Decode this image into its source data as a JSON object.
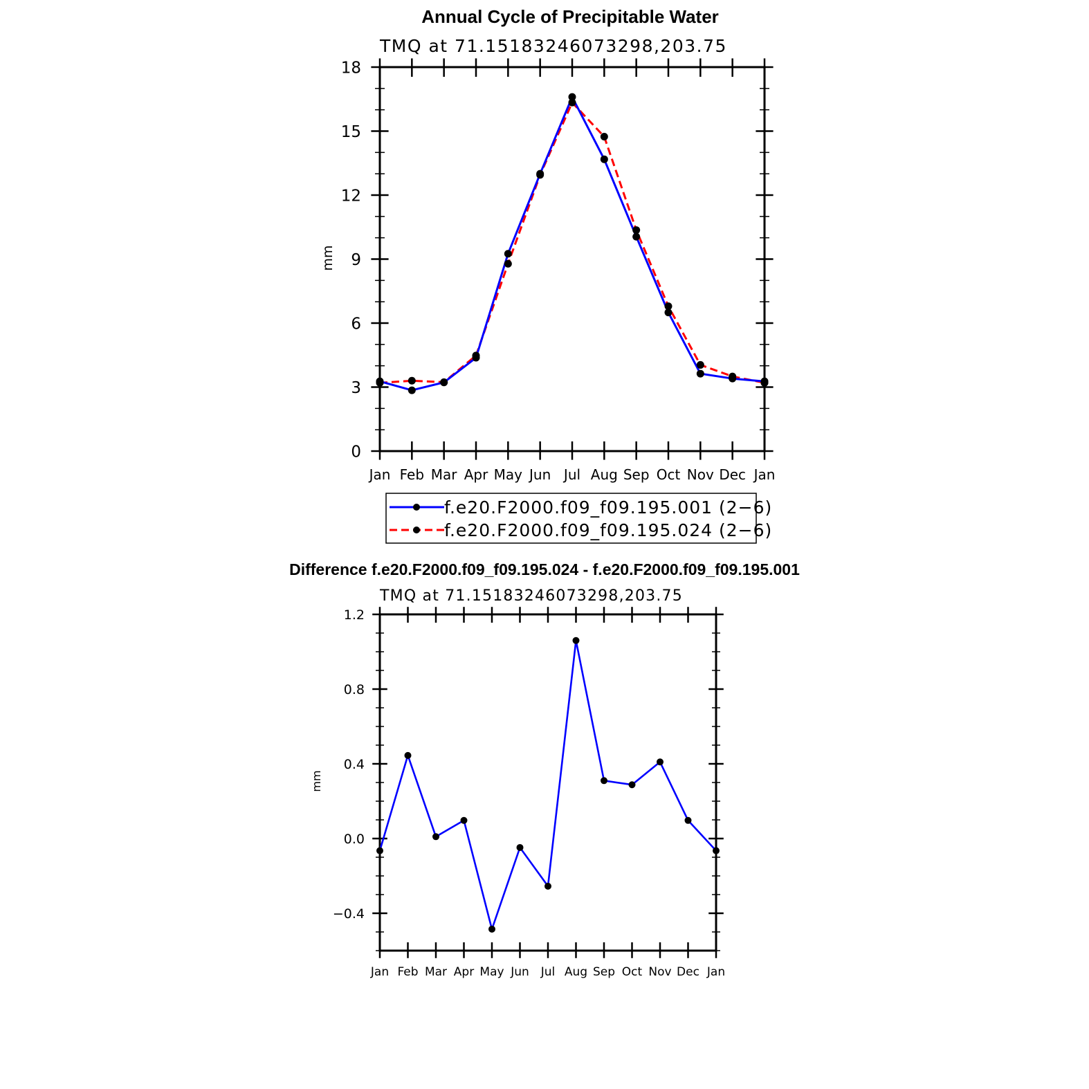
{
  "colors": {
    "blue": "#0000ff",
    "red": "#ff0000",
    "black": "#000000"
  },
  "chart_data": [
    {
      "type": "line",
      "title": "Annual Cycle of Precipitable Water",
      "subtitle": "TMQ at 71.15183246073298,203.75",
      "ylabel": "mm",
      "xlabel": "",
      "categories": [
        "Jan",
        "Feb",
        "Mar",
        "Apr",
        "May",
        "Jun",
        "Jul",
        "Aug",
        "Sep",
        "Oct",
        "Nov",
        "Dec",
        "Jan"
      ],
      "ylim": [
        0,
        18
      ],
      "yticks": [
        0,
        3,
        6,
        9,
        12,
        15,
        18
      ],
      "yminor": 1,
      "ytick_labels": [
        "0",
        "3",
        "6",
        "9",
        "12",
        "15",
        "18"
      ],
      "series": [
        {
          "name": "f.e20.F2000.f09_f09.195.001 (2−6)",
          "color": "#0000ff",
          "dash": "solid",
          "values": [
            3.27,
            2.85,
            3.22,
            4.38,
            9.25,
            13.0,
            16.6,
            13.68,
            10.05,
            6.5,
            3.63,
            3.4,
            3.27
          ]
        },
        {
          "name": "f.e20.F2000.f09_f09.195.024 (2−6)",
          "color": "#ff0000",
          "dash": "dashed",
          "values": [
            3.2,
            3.3,
            3.23,
            4.48,
            8.78,
            12.95,
            16.34,
            14.74,
            10.36,
            6.79,
            4.04,
            3.5,
            3.2
          ]
        }
      ],
      "legend": [
        "f.e20.F2000.f09_f09.195.001 (2−6)",
        "f.e20.F2000.f09_f09.195.024 (2−6)"
      ]
    },
    {
      "type": "line",
      "title": "Difference f.e20.F2000.f09_f09.195.024 - f.e20.F2000.f09_f09.195.001",
      "subtitle": "TMQ at 71.15183246073298,203.75",
      "ylabel": "mm",
      "xlabel": "",
      "categories": [
        "Jan",
        "Feb",
        "Mar",
        "Apr",
        "May",
        "Jun",
        "Jul",
        "Aug",
        "Sep",
        "Oct",
        "Nov",
        "Dec",
        "Jan"
      ],
      "ylim": [
        -0.6,
        1.2
      ],
      "yticks": [
        -0.4,
        0.0,
        0.4,
        0.8,
        1.2
      ],
      "yminor": 0.1,
      "ytick_labels": [
        "−0.4",
        "0.0",
        "0.4",
        "0.8",
        "1.2"
      ],
      "series": [
        {
          "name": "difference",
          "color": "#0000ff",
          "dash": "solid",
          "values": [
            -0.065,
            0.445,
            0.01,
            0.097,
            -0.485,
            -0.048,
            -0.255,
            1.06,
            0.31,
            0.288,
            0.41,
            0.097,
            -0.065
          ]
        }
      ]
    }
  ]
}
